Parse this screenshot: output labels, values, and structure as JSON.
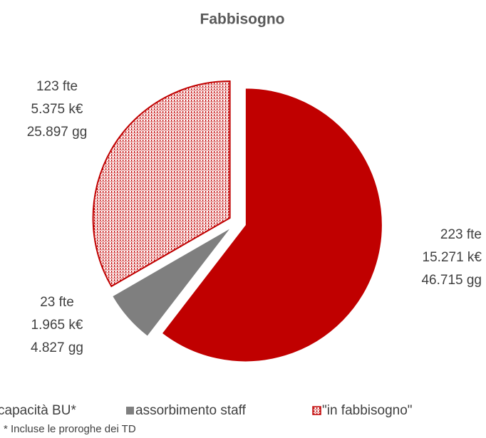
{
  "chart_data": {
    "type": "pie",
    "title": "Fabbisogno",
    "categories": [
      "capacità BU*",
      "assorbimento staff",
      "\"in fabbisogno\""
    ],
    "values": [
      223,
      23,
      123
    ],
    "value_labels": [
      "223 fte",
      "23 fte",
      "123 fte"
    ],
    "cost_labels": [
      "15.271 k€",
      "1.965 k€",
      "5.375 k€"
    ],
    "day_labels": [
      "46.715 gg",
      "4.827 gg",
      "25.897 gg"
    ],
    "colors": [
      "#c00000",
      "#7f7f7f",
      "#c00000"
    ],
    "hatched": [
      false,
      false,
      true
    ],
    "footnote": "* Incluse le proroghe dei TD"
  }
}
